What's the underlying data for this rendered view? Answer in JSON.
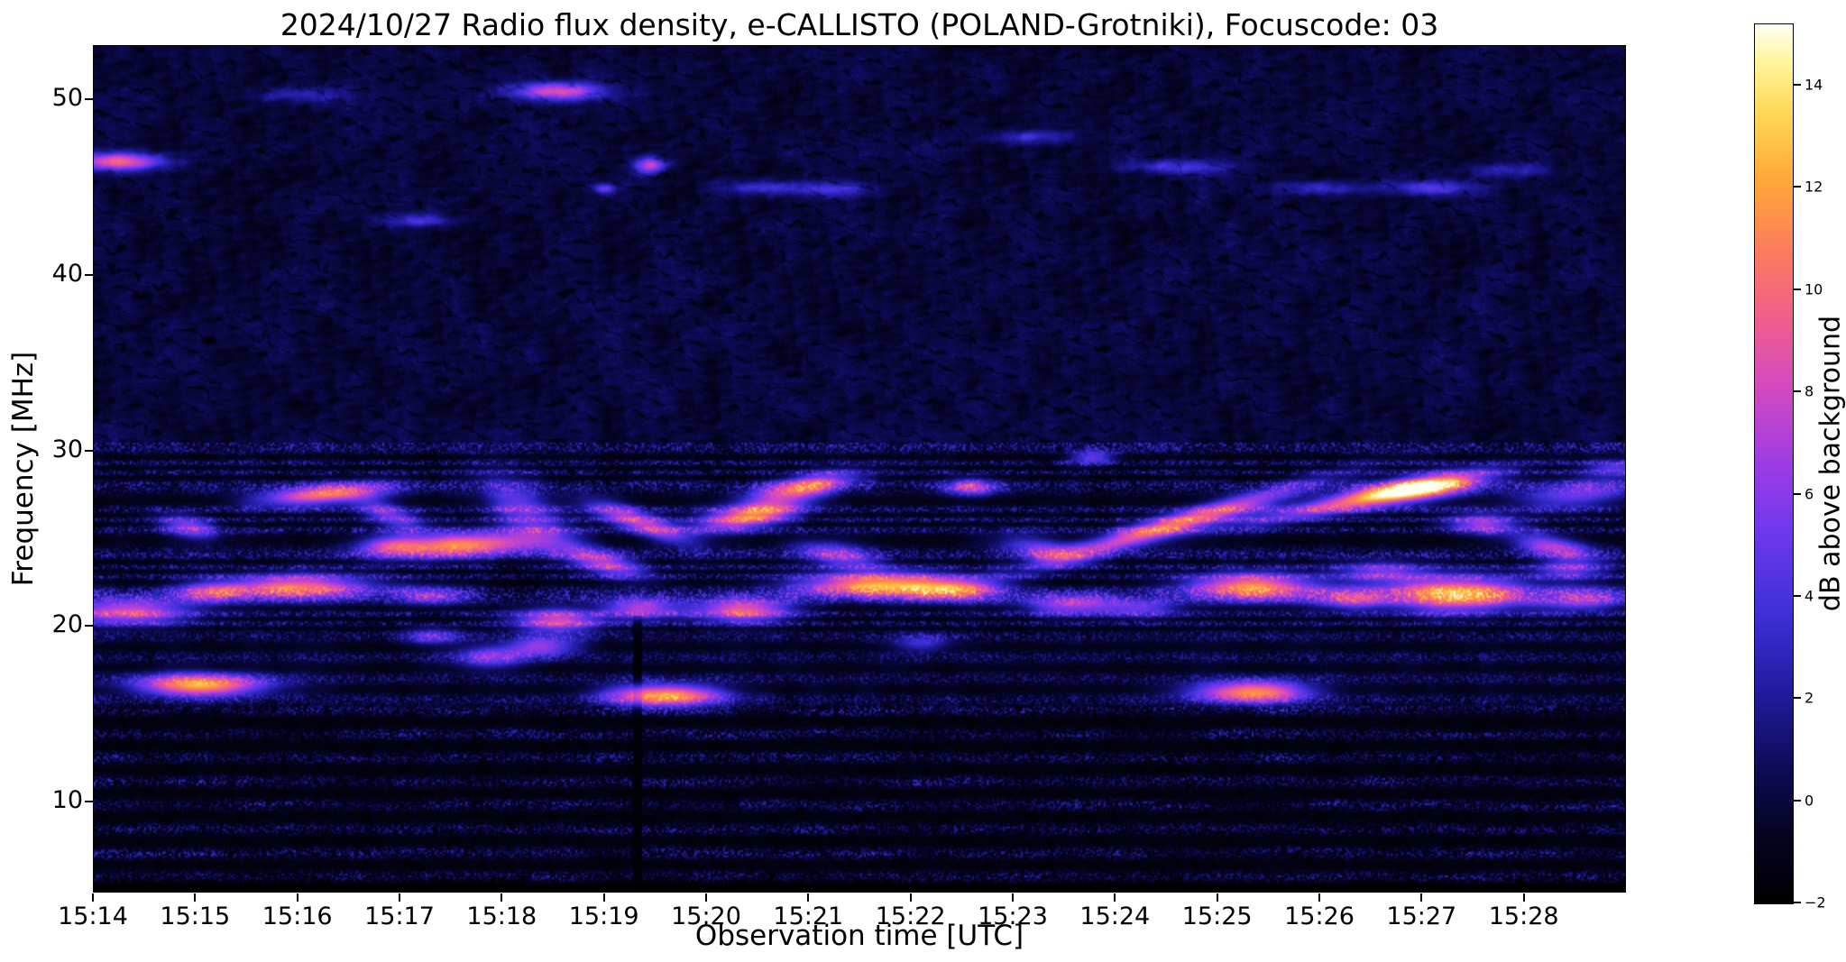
{
  "chart_data": {
    "type": "heatmap",
    "title": "2024/10/27  Radio flux density, e-CALLISTO (POLAND-Grotniki), Focuscode: 03",
    "xlabel": "Observation time [UTC]",
    "ylabel": "Frequency [MHz]",
    "colorbar_label": "dB above background",
    "date": "2024/10/27",
    "instrument": "e-CALLISTO",
    "station": "POLAND-Grotniki",
    "focuscode": "03",
    "x_tick_labels": [
      "15:14",
      "15:15",
      "15:16",
      "15:17",
      "15:18",
      "15:19",
      "15:20",
      "15:21",
      "15:22",
      "15:23",
      "15:24",
      "15:25",
      "15:26",
      "15:27",
      "15:28"
    ],
    "x_range_minutes": [
      0,
      15
    ],
    "y_ticks": [
      10,
      20,
      30,
      40,
      50
    ],
    "freq_range_mhz": [
      4.8,
      53.1
    ],
    "colorbar_ticks": [
      -2,
      0,
      2,
      4,
      6,
      8,
      10,
      12,
      14
    ],
    "colorbar_tick_labels": [
      "−2",
      "0",
      "2",
      "4",
      "6",
      "8",
      "10",
      "12",
      "14"
    ],
    "colorbar_range_db": [
      -2,
      15.2
    ],
    "legend": "color encodes dB above background",
    "bursts": [
      {
        "t": 0.25,
        "f": 46.5,
        "st": 0.3,
        "sf": 0.35,
        "amp": 10,
        "drift": 0
      },
      {
        "t": 2.0,
        "f": 50.3,
        "st": 0.3,
        "sf": 0.3,
        "amp": 3,
        "drift": 0
      },
      {
        "t": 4.55,
        "f": 50.5,
        "st": 0.3,
        "sf": 0.35,
        "amp": 9,
        "drift": 0
      },
      {
        "t": 5.45,
        "f": 46.3,
        "st": 0.1,
        "sf": 0.3,
        "amp": 8,
        "drift": 0
      },
      {
        "t": 5.0,
        "f": 44.95,
        "st": 0.08,
        "sf": 0.22,
        "amp": 5,
        "drift": 0
      },
      {
        "t": 3.2,
        "f": 43.1,
        "st": 0.25,
        "sf": 0.28,
        "amp": 4,
        "drift": 0
      },
      {
        "t": 6.6,
        "f": 45.0,
        "st": 0.3,
        "sf": 0.3,
        "amp": 4,
        "drift": 0
      },
      {
        "t": 7.3,
        "f": 44.9,
        "st": 0.25,
        "sf": 0.28,
        "amp": 3.5,
        "drift": 0
      },
      {
        "t": 9.2,
        "f": 47.9,
        "st": 0.3,
        "sf": 0.3,
        "amp": 3.5,
        "drift": 0
      },
      {
        "t": 10.6,
        "f": 46.2,
        "st": 0.35,
        "sf": 0.3,
        "amp": 4,
        "drift": 0
      },
      {
        "t": 12.0,
        "f": 45.0,
        "st": 0.3,
        "sf": 0.28,
        "amp": 3.5,
        "drift": 0
      },
      {
        "t": 13.1,
        "f": 45.0,
        "st": 0.3,
        "sf": 0.3,
        "amp": 4.5,
        "drift": 0
      },
      {
        "t": 13.9,
        "f": 46.0,
        "st": 0.3,
        "sf": 0.28,
        "amp": 3,
        "drift": 0
      },
      {
        "t": 0.35,
        "f": 20.8,
        "st": 0.45,
        "sf": 0.55,
        "amp": 9,
        "drift": 0
      },
      {
        "t": 1.05,
        "f": 16.6,
        "st": 0.45,
        "sf": 0.45,
        "amp": 13,
        "drift": 0
      },
      {
        "t": 0.95,
        "f": 25.6,
        "st": 0.2,
        "sf": 0.45,
        "amp": 7,
        "drift": -1
      },
      {
        "t": 1.15,
        "f": 21.9,
        "st": 0.25,
        "sf": 0.4,
        "amp": 7,
        "drift": 0
      },
      {
        "t": 2.0,
        "f": 22.2,
        "st": 0.5,
        "sf": 0.5,
        "amp": 11,
        "drift": 0
      },
      {
        "t": 2.25,
        "f": 27.5,
        "st": 0.45,
        "sf": 0.4,
        "amp": 11,
        "drift": 0.5
      },
      {
        "t": 2.9,
        "f": 26.3,
        "st": 0.25,
        "sf": 0.5,
        "amp": 6,
        "drift": -2
      },
      {
        "t": 2.9,
        "f": 24.6,
        "st": 0.2,
        "sf": 0.4,
        "amp": 5,
        "drift": 0
      },
      {
        "t": 3.3,
        "f": 19.4,
        "st": 0.2,
        "sf": 0.35,
        "amp": 5,
        "drift": 0
      },
      {
        "t": 3.3,
        "f": 21.7,
        "st": 0.25,
        "sf": 0.4,
        "amp": 6,
        "drift": 0
      },
      {
        "t": 3.6,
        "f": 24.6,
        "st": 0.55,
        "sf": 0.5,
        "amp": 12,
        "drift": 0.3
      },
      {
        "t": 3.9,
        "f": 18.2,
        "st": 0.25,
        "sf": 0.45,
        "amp": 6,
        "drift": 0
      },
      {
        "t": 4.2,
        "f": 26.6,
        "st": 0.3,
        "sf": 1.1,
        "amp": 6,
        "drift": -3
      },
      {
        "t": 4.4,
        "f": 18.8,
        "st": 0.25,
        "sf": 0.4,
        "amp": 7,
        "drift": 0
      },
      {
        "t": 4.55,
        "f": 20.3,
        "st": 0.3,
        "sf": 0.5,
        "amp": 9,
        "drift": 0
      },
      {
        "t": 5.0,
        "f": 23.6,
        "st": 0.3,
        "sf": 0.5,
        "amp": 8,
        "drift": -1.5
      },
      {
        "t": 5.35,
        "f": 21.0,
        "st": 0.25,
        "sf": 0.45,
        "amp": 8,
        "drift": 0
      },
      {
        "t": 5.35,
        "f": 25.9,
        "st": 0.35,
        "sf": 0.5,
        "amp": 9,
        "drift": -2
      },
      {
        "t": 5.6,
        "f": 16.0,
        "st": 0.4,
        "sf": 0.45,
        "amp": 13,
        "drift": 0
      },
      {
        "t": 6.45,
        "f": 26.3,
        "st": 0.35,
        "sf": 0.5,
        "amp": 12,
        "drift": 1
      },
      {
        "t": 6.35,
        "f": 20.9,
        "st": 0.35,
        "sf": 0.5,
        "amp": 10,
        "drift": 0
      },
      {
        "t": 6.95,
        "f": 27.9,
        "st": 0.35,
        "sf": 0.45,
        "amp": 11,
        "drift": 1
      },
      {
        "t": 7.3,
        "f": 24.0,
        "st": 0.3,
        "sf": 0.5,
        "amp": 7,
        "drift": -1
      },
      {
        "t": 7.7,
        "f": 22.3,
        "st": 0.55,
        "sf": 0.5,
        "amp": 13,
        "drift": 0
      },
      {
        "t": 8.1,
        "f": 19.0,
        "st": 0.2,
        "sf": 0.35,
        "amp": 4,
        "drift": 0
      },
      {
        "t": 8.45,
        "f": 22.0,
        "st": 0.3,
        "sf": 0.45,
        "amp": 8,
        "drift": 0
      },
      {
        "t": 8.6,
        "f": 27.9,
        "st": 0.2,
        "sf": 0.35,
        "amp": 8,
        "drift": 0
      },
      {
        "t": 9.3,
        "f": 24.3,
        "st": 0.3,
        "sf": 0.5,
        "amp": 6,
        "drift": -1
      },
      {
        "t": 9.6,
        "f": 21.2,
        "st": 0.35,
        "sf": 0.45,
        "amp": 8,
        "drift": 0
      },
      {
        "t": 9.8,
        "f": 29.6,
        "st": 0.15,
        "sf": 0.3,
        "amp": 6,
        "drift": 0
      },
      {
        "t": 10.3,
        "f": 21.0,
        "st": 0.25,
        "sf": 0.4,
        "amp": 5,
        "drift": 0
      },
      {
        "t": 10.6,
        "f": 25.8,
        "st": 0.9,
        "sf": 0.45,
        "amp": 11,
        "drift": 1.7
      },
      {
        "t": 11.35,
        "f": 16.2,
        "st": 0.4,
        "sf": 0.45,
        "amp": 12,
        "drift": 0
      },
      {
        "t": 11.35,
        "f": 22.2,
        "st": 0.45,
        "sf": 0.55,
        "amp": 12,
        "drift": 0
      },
      {
        "t": 12.3,
        "f": 21.5,
        "st": 0.25,
        "sf": 0.4,
        "amp": 7,
        "drift": 0
      },
      {
        "t": 12.4,
        "f": 27.2,
        "st": 0.8,
        "sf": 0.4,
        "amp": 9,
        "drift": 1.2
      },
      {
        "t": 12.6,
        "f": 23.1,
        "st": 0.3,
        "sf": 0.45,
        "amp": 6,
        "drift": 0
      },
      {
        "t": 13.0,
        "f": 27.8,
        "st": 0.4,
        "sf": 0.5,
        "amp": 12,
        "drift": 0.8
      },
      {
        "t": 13.35,
        "f": 21.8,
        "st": 0.5,
        "sf": 0.7,
        "amp": 13,
        "drift": 0
      },
      {
        "t": 13.6,
        "f": 25.8,
        "st": 0.25,
        "sf": 0.4,
        "amp": 7,
        "drift": 0
      },
      {
        "t": 14.3,
        "f": 24.5,
        "st": 0.3,
        "sf": 0.45,
        "amp": 8,
        "drift": -1
      },
      {
        "t": 14.45,
        "f": 23.2,
        "st": 0.25,
        "sf": 0.4,
        "amp": 6,
        "drift": 0
      },
      {
        "t": 14.6,
        "f": 21.5,
        "st": 0.3,
        "sf": 0.5,
        "amp": 7,
        "drift": 0
      },
      {
        "t": 14.5,
        "f": 27.5,
        "st": 0.4,
        "sf": 0.6,
        "amp": 6,
        "drift": 0.5
      },
      {
        "t": 14.9,
        "f": 29.0,
        "st": 0.2,
        "sf": 0.35,
        "amp": 5,
        "drift": 0
      }
    ]
  }
}
